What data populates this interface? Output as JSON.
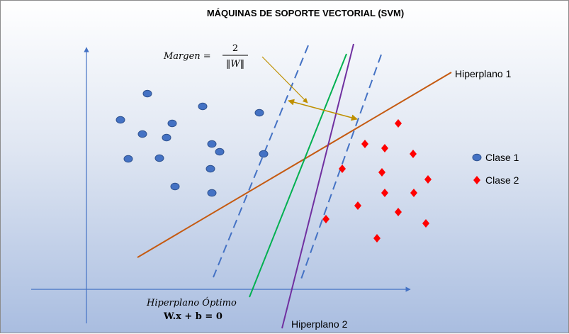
{
  "title": "MÁQUINAS DE SOPORTE VECTORIAL  (SVM)",
  "margin_formula": {
    "lhs": "Margen =",
    "numerator": "2",
    "denominator": "‖W‖"
  },
  "hyperplanes": {
    "optimal_label": "Hiperplano Óptimo",
    "optimal_equation": "W.x + b = 0",
    "plane1_label": "Hiperplano 1",
    "plane2_label": "Hiperplano 2"
  },
  "legend": [
    {
      "label": "Clase 1",
      "shape": "ellipse",
      "color": "#4472c4"
    },
    {
      "label": "Clase 2",
      "shape": "diamond",
      "color": "#ff0000"
    }
  ],
  "colors": {
    "axis": "#4472c4",
    "class1": "#4472c4",
    "class1_border": "#2f528f",
    "class2": "#ff0000",
    "optimal": "#00b050",
    "plane1": "#c55a11",
    "plane2": "#7030a0",
    "support": "#4472c4",
    "margin_arrow": "#bf9000"
  }
}
